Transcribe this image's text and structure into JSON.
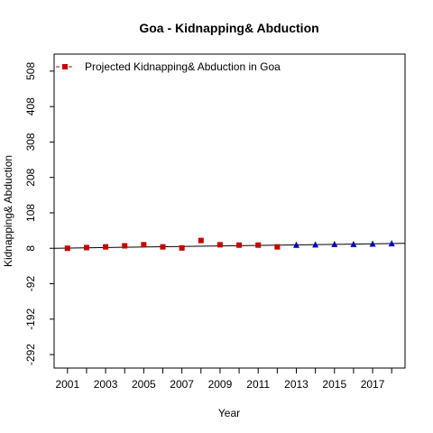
{
  "chart_data": {
    "type": "scatter",
    "title": "Goa  -  Kidnapping& Abduction",
    "xlabel": "Year",
    "ylabel": "Kidnapping& Abduction",
    "xlim": [
      2000.3,
      2018.7
    ],
    "ylim": [
      -330,
      556
    ],
    "x_ticks": [
      2001,
      2002,
      2003,
      2004,
      2005,
      2006,
      2007,
      2008,
      2009,
      2010,
      2011,
      2012,
      2013,
      2014,
      2015,
      2016,
      2017,
      2018
    ],
    "x_tick_labels": [
      "2001",
      "",
      "2003",
      "",
      "2005",
      "",
      "2007",
      "",
      "2009",
      "",
      "2011",
      "",
      "2013",
      "",
      "2015",
      "",
      "2017",
      ""
    ],
    "y_ticks": [
      -292,
      -192,
      -92,
      8,
      108,
      208,
      308,
      408,
      508
    ],
    "y_tick_labels": [
      "-292",
      "-192",
      "-92",
      "8",
      "108",
      "208",
      "308",
      "408",
      "508"
    ],
    "legend": {
      "placement": "top-left",
      "label": "Projected  Kidnapping& Abduction  in  Goa"
    },
    "colors": {
      "actual": "#cc0000",
      "projected": "#0000cc",
      "line": "#000000"
    },
    "series": [
      {
        "name": "actual",
        "marker": "square",
        "x": [
          2001,
          2002,
          2003,
          2004,
          2005,
          2006,
          2007,
          2008,
          2009,
          2010,
          2011,
          2012
        ],
        "y": [
          8,
          10,
          12,
          15,
          18,
          12,
          9,
          30,
          18,
          17,
          17,
          12
        ]
      },
      {
        "name": "projected",
        "marker": "triangle",
        "x": [
          2013,
          2014,
          2015,
          2016,
          2017,
          2018
        ],
        "y": [
          17,
          18,
          19,
          19,
          20,
          21
        ]
      }
    ],
    "trend_line": {
      "x": [
        2000.3,
        2018.7
      ],
      "y": [
        8,
        22
      ]
    }
  }
}
